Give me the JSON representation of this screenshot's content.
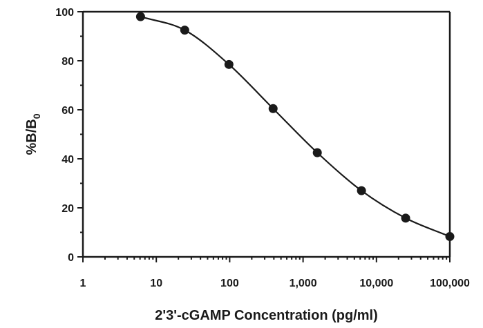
{
  "chart_data": {
    "type": "scatter",
    "title": "",
    "xlabel": "2'3'-cGAMP Concentration (pg/ml)",
    "ylabel_main": "%B/B",
    "ylabel_sub": "0",
    "x_scale": "log",
    "xlim": [
      1,
      100000
    ],
    "ylim": [
      0,
      100
    ],
    "x_ticks": [
      1,
      10,
      100,
      1000,
      10000,
      100000
    ],
    "x_tick_labels": [
      "1",
      "10",
      "100",
      "1,000",
      "10,000",
      "100,000"
    ],
    "y_ticks": [
      0,
      20,
      40,
      60,
      80,
      100
    ],
    "y_tick_labels": [
      "0",
      "20",
      "40",
      "60",
      "80",
      "100"
    ],
    "grid": false,
    "legend": "none",
    "fit_curve": true,
    "series": [
      {
        "x": [
          6.1,
          24.4,
          97.7,
          390.6,
          1562.5,
          6250,
          25000,
          100000
        ],
        "y": [
          98,
          92.5,
          78.5,
          60.5,
          42.5,
          27,
          15.8,
          8.3
        ]
      }
    ]
  }
}
